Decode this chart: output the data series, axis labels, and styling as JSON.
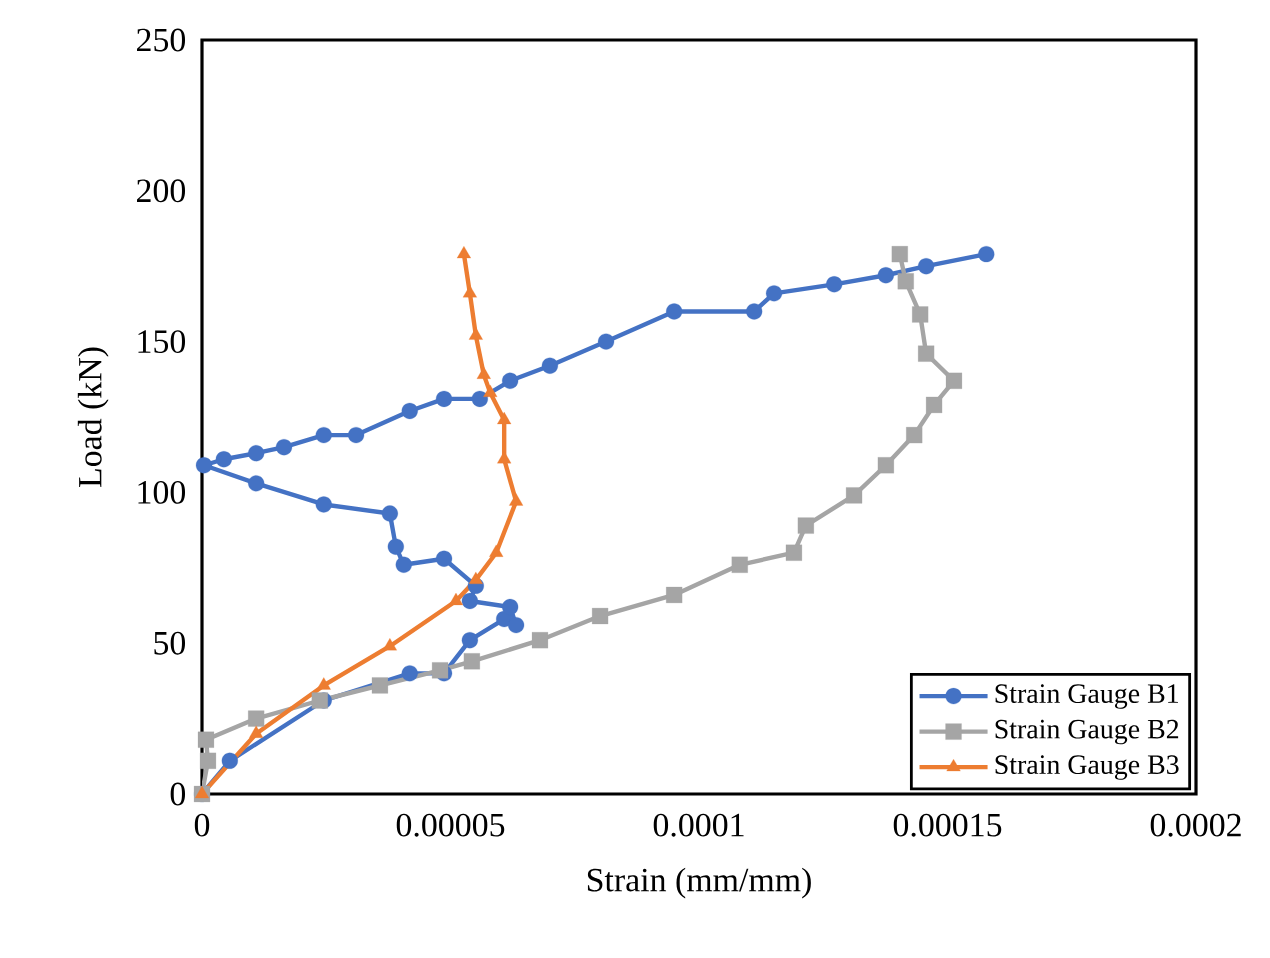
{
  "chart_data": {
    "type": "line",
    "xlabel": "Strain (mm/mm)",
    "ylabel": "Load (kN)",
    "xlim": [
      0,
      0.0002
    ],
    "ylim": [
      0,
      250
    ],
    "xticks": [
      {
        "value": 0,
        "label": "0"
      },
      {
        "value": 5e-05,
        "label": "0.00005"
      },
      {
        "value": 0.0001,
        "label": "0.0001"
      },
      {
        "value": 0.00015,
        "label": "0.00015"
      },
      {
        "value": 0.0002,
        "label": "0.0002"
      }
    ],
    "yticks": [
      0,
      50,
      100,
      150,
      200,
      250
    ],
    "legend": "bottom right",
    "line_style": "solid",
    "series": [
      {
        "name": "Strain Gauge B1",
        "color": "#4472c4",
        "marker": "circle",
        "x": [
          0,
          5.6e-06,
          2.45e-05,
          4.18e-05,
          4.87e-05,
          5.39e-05,
          6.08e-05,
          6.32e-05,
          6.2e-05,
          5.39e-05,
          5.51e-05,
          4.87e-05,
          4.06e-05,
          3.9e-05,
          3.78e-05,
          2.45e-05,
          1.09e-05,
          4e-07,
          4.4e-06,
          1.09e-05,
          1.65e-05,
          2.45e-05,
          3.1e-05,
          4.18e-05,
          4.87e-05,
          5.59e-05,
          6.2e-05,
          7e-05,
          8.13e-05,
          9.5e-05,
          0.0001111,
          0.0001151,
          0.0001272,
          0.0001376,
          0.0001457,
          0.0001578
        ],
        "values": [
          0,
          11,
          31,
          40,
          40,
          51,
          58,
          56,
          62,
          64,
          69,
          78,
          76,
          82,
          93,
          96,
          103,
          109,
          111,
          113,
          115,
          119,
          119,
          127,
          131,
          131,
          137,
          142,
          150,
          160,
          160,
          166,
          169,
          172,
          175,
          179
        ]
      },
      {
        "name": "Strain Gauge B2",
        "color": "#a5a5a5",
        "marker": "square",
        "x": [
          0,
          1.2e-06,
          8e-07,
          1.09e-05,
          2.37e-05,
          3.58e-05,
          4.79e-05,
          5.43e-05,
          6.8e-05,
          8.01e-05,
          9.5e-05,
          0.0001082,
          0.0001191,
          0.0001215,
          0.0001312,
          0.0001376,
          0.0001433,
          0.0001473,
          0.0001513,
          0.0001457,
          0.0001445,
          0.0001416,
          0.0001404
        ],
        "values": [
          0,
          11,
          18,
          25,
          31,
          36,
          41,
          44,
          51,
          59,
          66,
          76,
          80,
          89,
          99,
          109,
          119,
          129,
          137,
          146,
          159,
          170,
          179
        ]
      },
      {
        "name": "Strain Gauge B3",
        "color": "#ed7d31",
        "marker": "triangle",
        "x": [
          0,
          1.09e-05,
          2.45e-05,
          3.78e-05,
          5.11e-05,
          5.51e-05,
          5.92e-05,
          6.32e-05,
          6.08e-05,
          6.08e-05,
          5.8e-05,
          5.67e-05,
          5.51e-05,
          5.39e-05,
          5.27e-05
        ],
        "values": [
          0,
          20,
          36,
          49,
          64,
          71,
          80,
          97,
          111,
          124,
          133,
          139,
          152,
          166,
          179
        ]
      }
    ]
  }
}
